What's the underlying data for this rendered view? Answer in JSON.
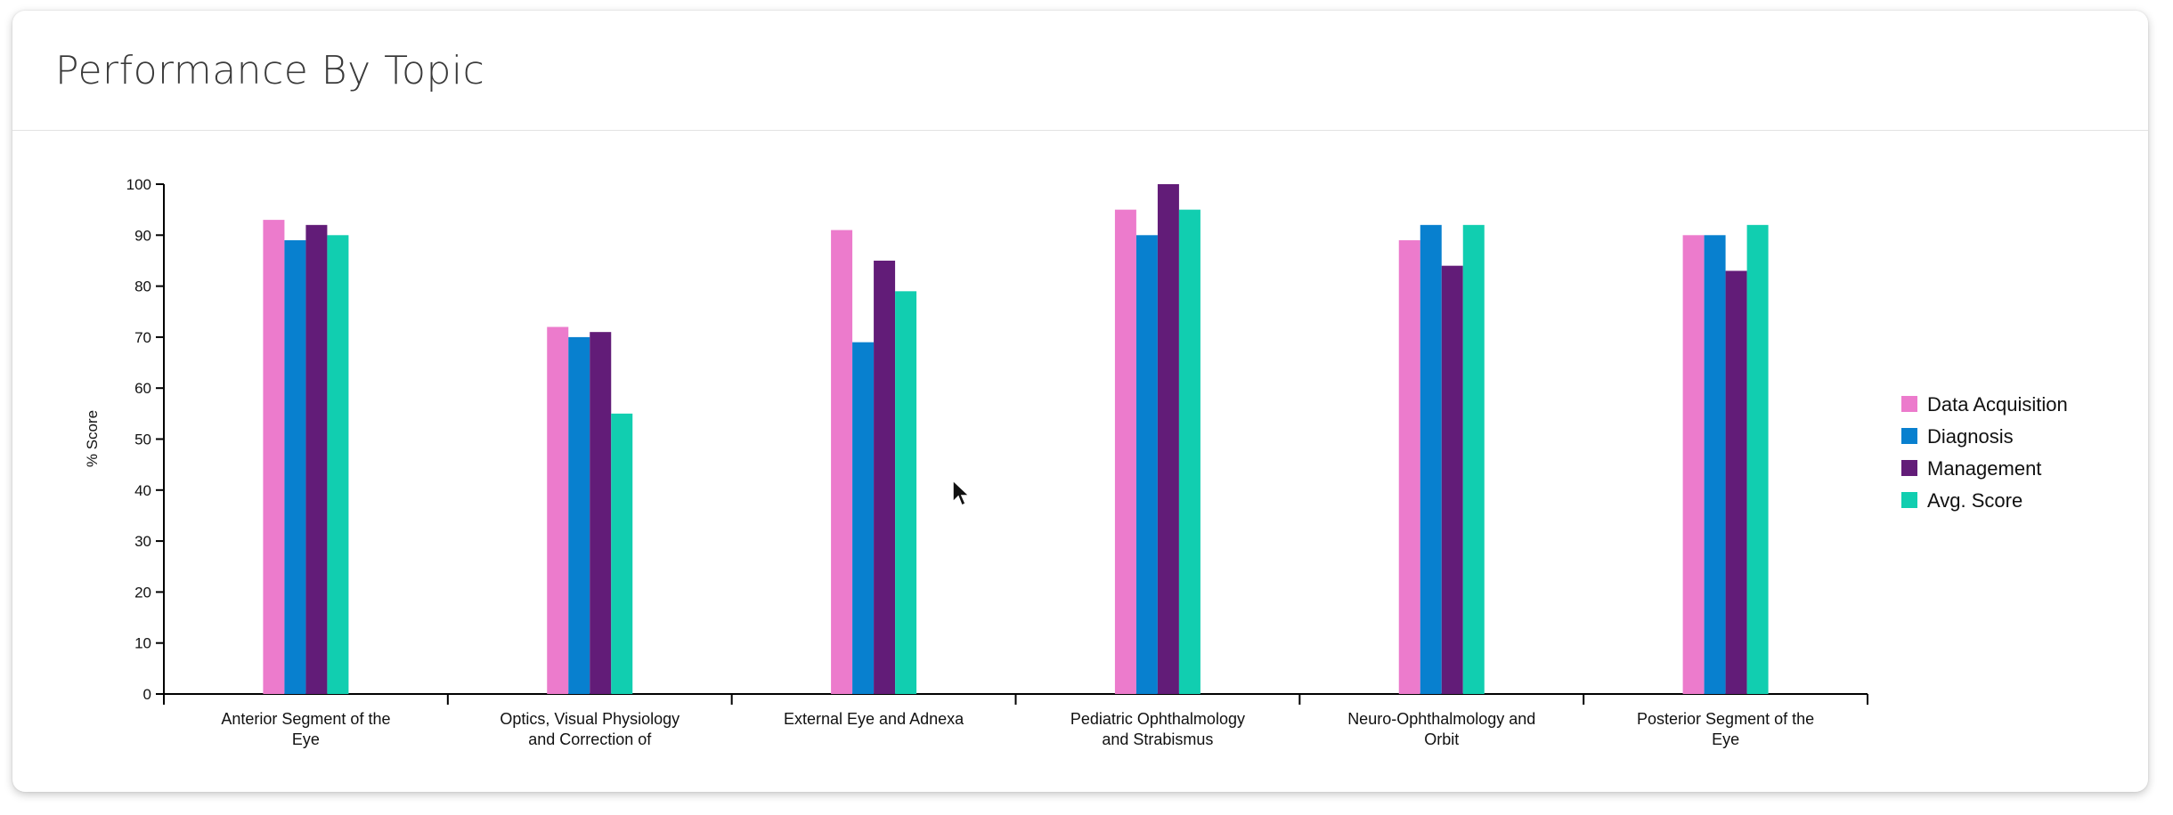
{
  "card": {
    "title": "Performance By Topic"
  },
  "chart_data": {
    "type": "bar",
    "title": "",
    "xlabel": "",
    "ylabel": "% Score",
    "ylim": [
      0,
      100
    ],
    "yticks": [
      0,
      10,
      20,
      30,
      40,
      50,
      60,
      70,
      80,
      90,
      100
    ],
    "grid": false,
    "legend_position": "right",
    "categories": [
      [
        "Anterior Segment of the",
        "Eye"
      ],
      [
        "Optics, Visual Physiology",
        "and Correction of"
      ],
      [
        "External Eye and Adnexa"
      ],
      [
        "Pediatric Ophthalmology",
        "and Strabismus"
      ],
      [
        "Neuro-Ophthalmology and",
        "Orbit"
      ],
      [
        "Posterior Segment of the",
        "Eye"
      ]
    ],
    "series": [
      {
        "name": "Data Acquisition",
        "color": "#ec7bcc",
        "values": [
          93,
          72,
          91,
          95,
          89,
          90
        ]
      },
      {
        "name": "Diagnosis",
        "color": "#0880cf",
        "values": [
          89,
          70,
          69,
          90,
          92,
          90
        ]
      },
      {
        "name": "Management",
        "color": "#621c78",
        "values": [
          92,
          71,
          85,
          100,
          84,
          83
        ]
      },
      {
        "name": "Avg. Score",
        "color": "#11ceb0",
        "values": [
          90,
          55,
          79,
          95,
          92,
          92
        ]
      }
    ]
  }
}
